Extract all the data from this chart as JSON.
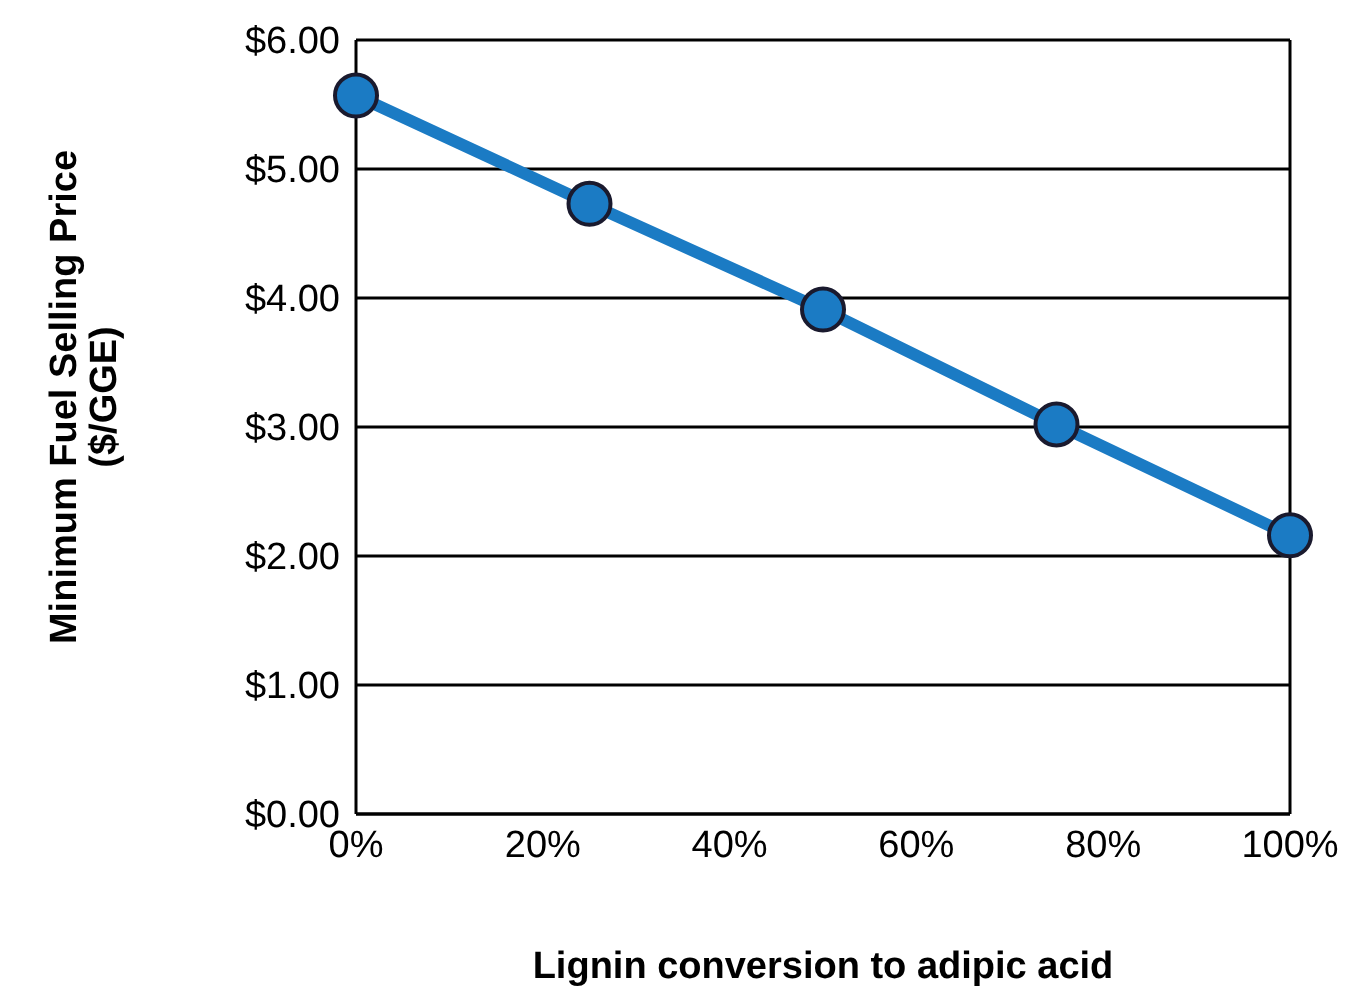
{
  "chart_data": {
    "type": "line",
    "xlabel": "Lignin conversion to adipic acid",
    "ylabel": "Minimum Fuel Selling Price\n($/GGE)",
    "x": [
      0,
      25,
      50,
      75,
      100
    ],
    "series": [
      {
        "color": "#1b7bc4",
        "values": [
          5.57,
          4.73,
          3.91,
          3.02,
          2.16
        ]
      }
    ],
    "xlim": [
      0,
      100
    ],
    "xticks": [
      {
        "value": 0,
        "label": "0%"
      },
      {
        "value": 20,
        "label": "20%"
      },
      {
        "value": 40,
        "label": "40%"
      },
      {
        "value": 60,
        "label": "60%"
      },
      {
        "value": 80,
        "label": "80%"
      },
      {
        "value": 100,
        "label": "100%"
      }
    ],
    "ylim": [
      0,
      6
    ],
    "yticks": [
      {
        "value": 0,
        "label": "$0.00"
      },
      {
        "value": 1,
        "label": "$1.00"
      },
      {
        "value": 2,
        "label": "$2.00"
      },
      {
        "value": 3,
        "label": "$3.00"
      },
      {
        "value": 4,
        "label": "$4.00"
      },
      {
        "value": 5,
        "label": "$5.00"
      },
      {
        "value": 6,
        "label": "$6.00"
      }
    ],
    "grid": "y",
    "marker": "circle",
    "line_style": "solid",
    "legend": false
  }
}
